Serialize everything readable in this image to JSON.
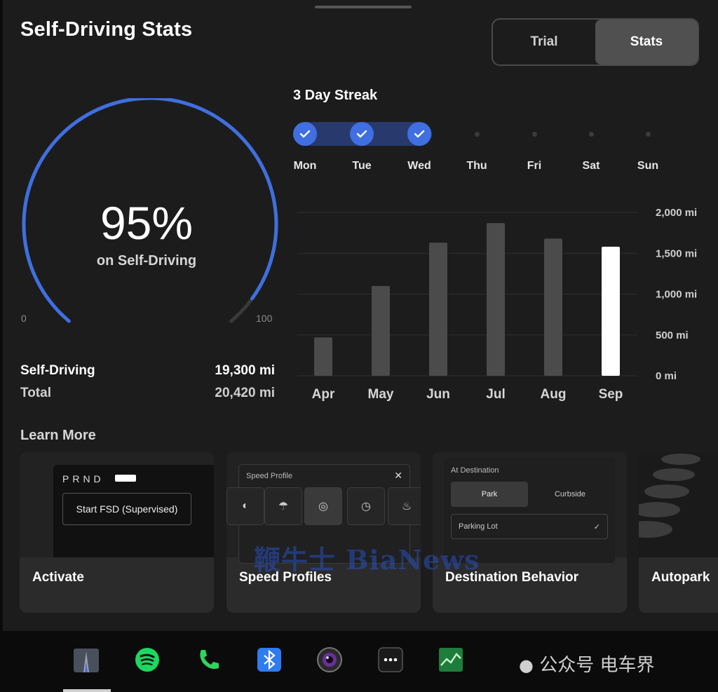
{
  "header": {
    "title": "Self-Driving Stats"
  },
  "toggle": {
    "options": [
      "Trial",
      "Stats"
    ],
    "selected": "Stats"
  },
  "gauge": {
    "value_pct": 95,
    "percent_text": "95%",
    "label": "on Self-Driving",
    "min_label": "0",
    "max_label": "100",
    "accent": "#3f6fe0"
  },
  "mileage": {
    "self_driving_label": "Self-Driving",
    "self_driving_value": "19,300 mi",
    "total_label": "Total",
    "total_value": "20,420 mi"
  },
  "streak": {
    "title": "3 Day Streak",
    "days": [
      "Mon",
      "Tue",
      "Wed",
      "Thu",
      "Fri",
      "Sat",
      "Sun"
    ],
    "completed": [
      true,
      true,
      true,
      false,
      false,
      false,
      false
    ]
  },
  "chart_data": {
    "type": "bar",
    "categories": [
      "Apr",
      "May",
      "Jun",
      "Jul",
      "Aug",
      "Sep"
    ],
    "values": [
      470,
      1100,
      1630,
      1870,
      1680,
      1580
    ],
    "highlight": "Sep",
    "ylim": [
      0,
      2000
    ],
    "yticks": [
      "0 mi",
      "500 mi",
      "1,000 mi",
      "1,500 mi",
      "2,000 mi"
    ],
    "ytick_values": [
      0,
      500,
      1000,
      1500,
      2000
    ],
    "grid": true,
    "bar_color": "#4b4b4b",
    "highlight_color": "#ffffff"
  },
  "learn_more": {
    "title": "Learn More",
    "cards": [
      {
        "label": "Activate",
        "prnd": "PRND",
        "button": "Start FSD (Supervised)"
      },
      {
        "label": "Speed Profiles",
        "panel_title": "Speed Profile",
        "close": "✕"
      },
      {
        "label": "Destination Behavior",
        "panel_title": "At Destination",
        "park": "Park",
        "curbside": "Curbside",
        "lot": "Parking Lot"
      },
      {
        "label": "Autopark"
      }
    ]
  },
  "watermark": {
    "text": "鞭牛士 BiaNews"
  },
  "dock": {
    "icons": [
      "autopilot-icon",
      "spotify-icon",
      "phone-icon",
      "bluetooth-icon",
      "camera-icon",
      "more-icon",
      "stocks-icon"
    ]
  },
  "brand": {
    "text": "公众号 电车界"
  }
}
